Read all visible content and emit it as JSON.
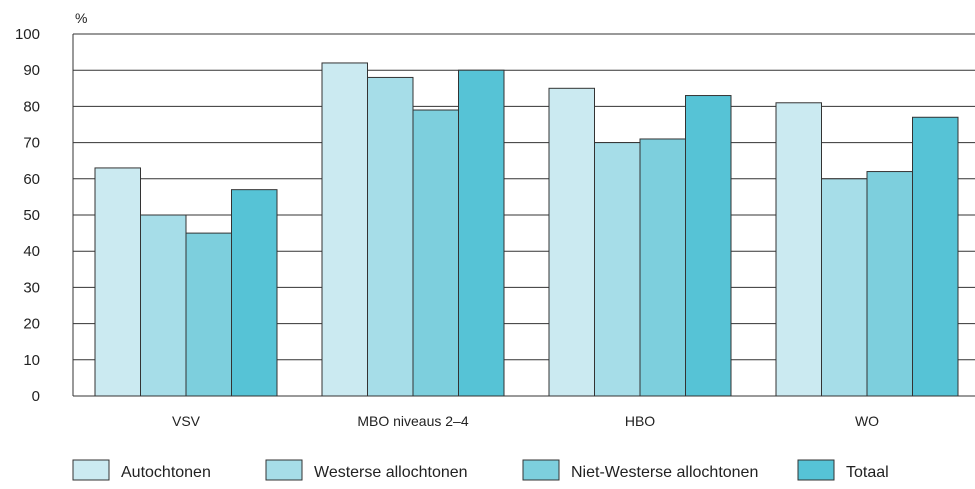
{
  "chart_data": {
    "type": "bar",
    "ylabel": "%",
    "ylim": [
      0,
      100
    ],
    "yticks": [
      0,
      10,
      20,
      30,
      40,
      50,
      60,
      70,
      80,
      90,
      100
    ],
    "grid": true,
    "legend_position": "bottom",
    "categories": [
      "VSV",
      "MBO niveaus 2–4",
      "HBO",
      "WO"
    ],
    "series": [
      {
        "name": "Autochtonen",
        "color": "#cbeaf1",
        "values": [
          63,
          92,
          85,
          81
        ]
      },
      {
        "name": "Westerse allochtonen",
        "color": "#a6dde8",
        "values": [
          50,
          88,
          70,
          60
        ]
      },
      {
        "name": "Niet-Westerse allochtonen",
        "color": "#7dcfdd",
        "values": [
          45,
          79,
          71,
          62
        ]
      },
      {
        "name": "Totaal",
        "color": "#56c3d6",
        "values": [
          57,
          90,
          83,
          77
        ]
      }
    ]
  }
}
